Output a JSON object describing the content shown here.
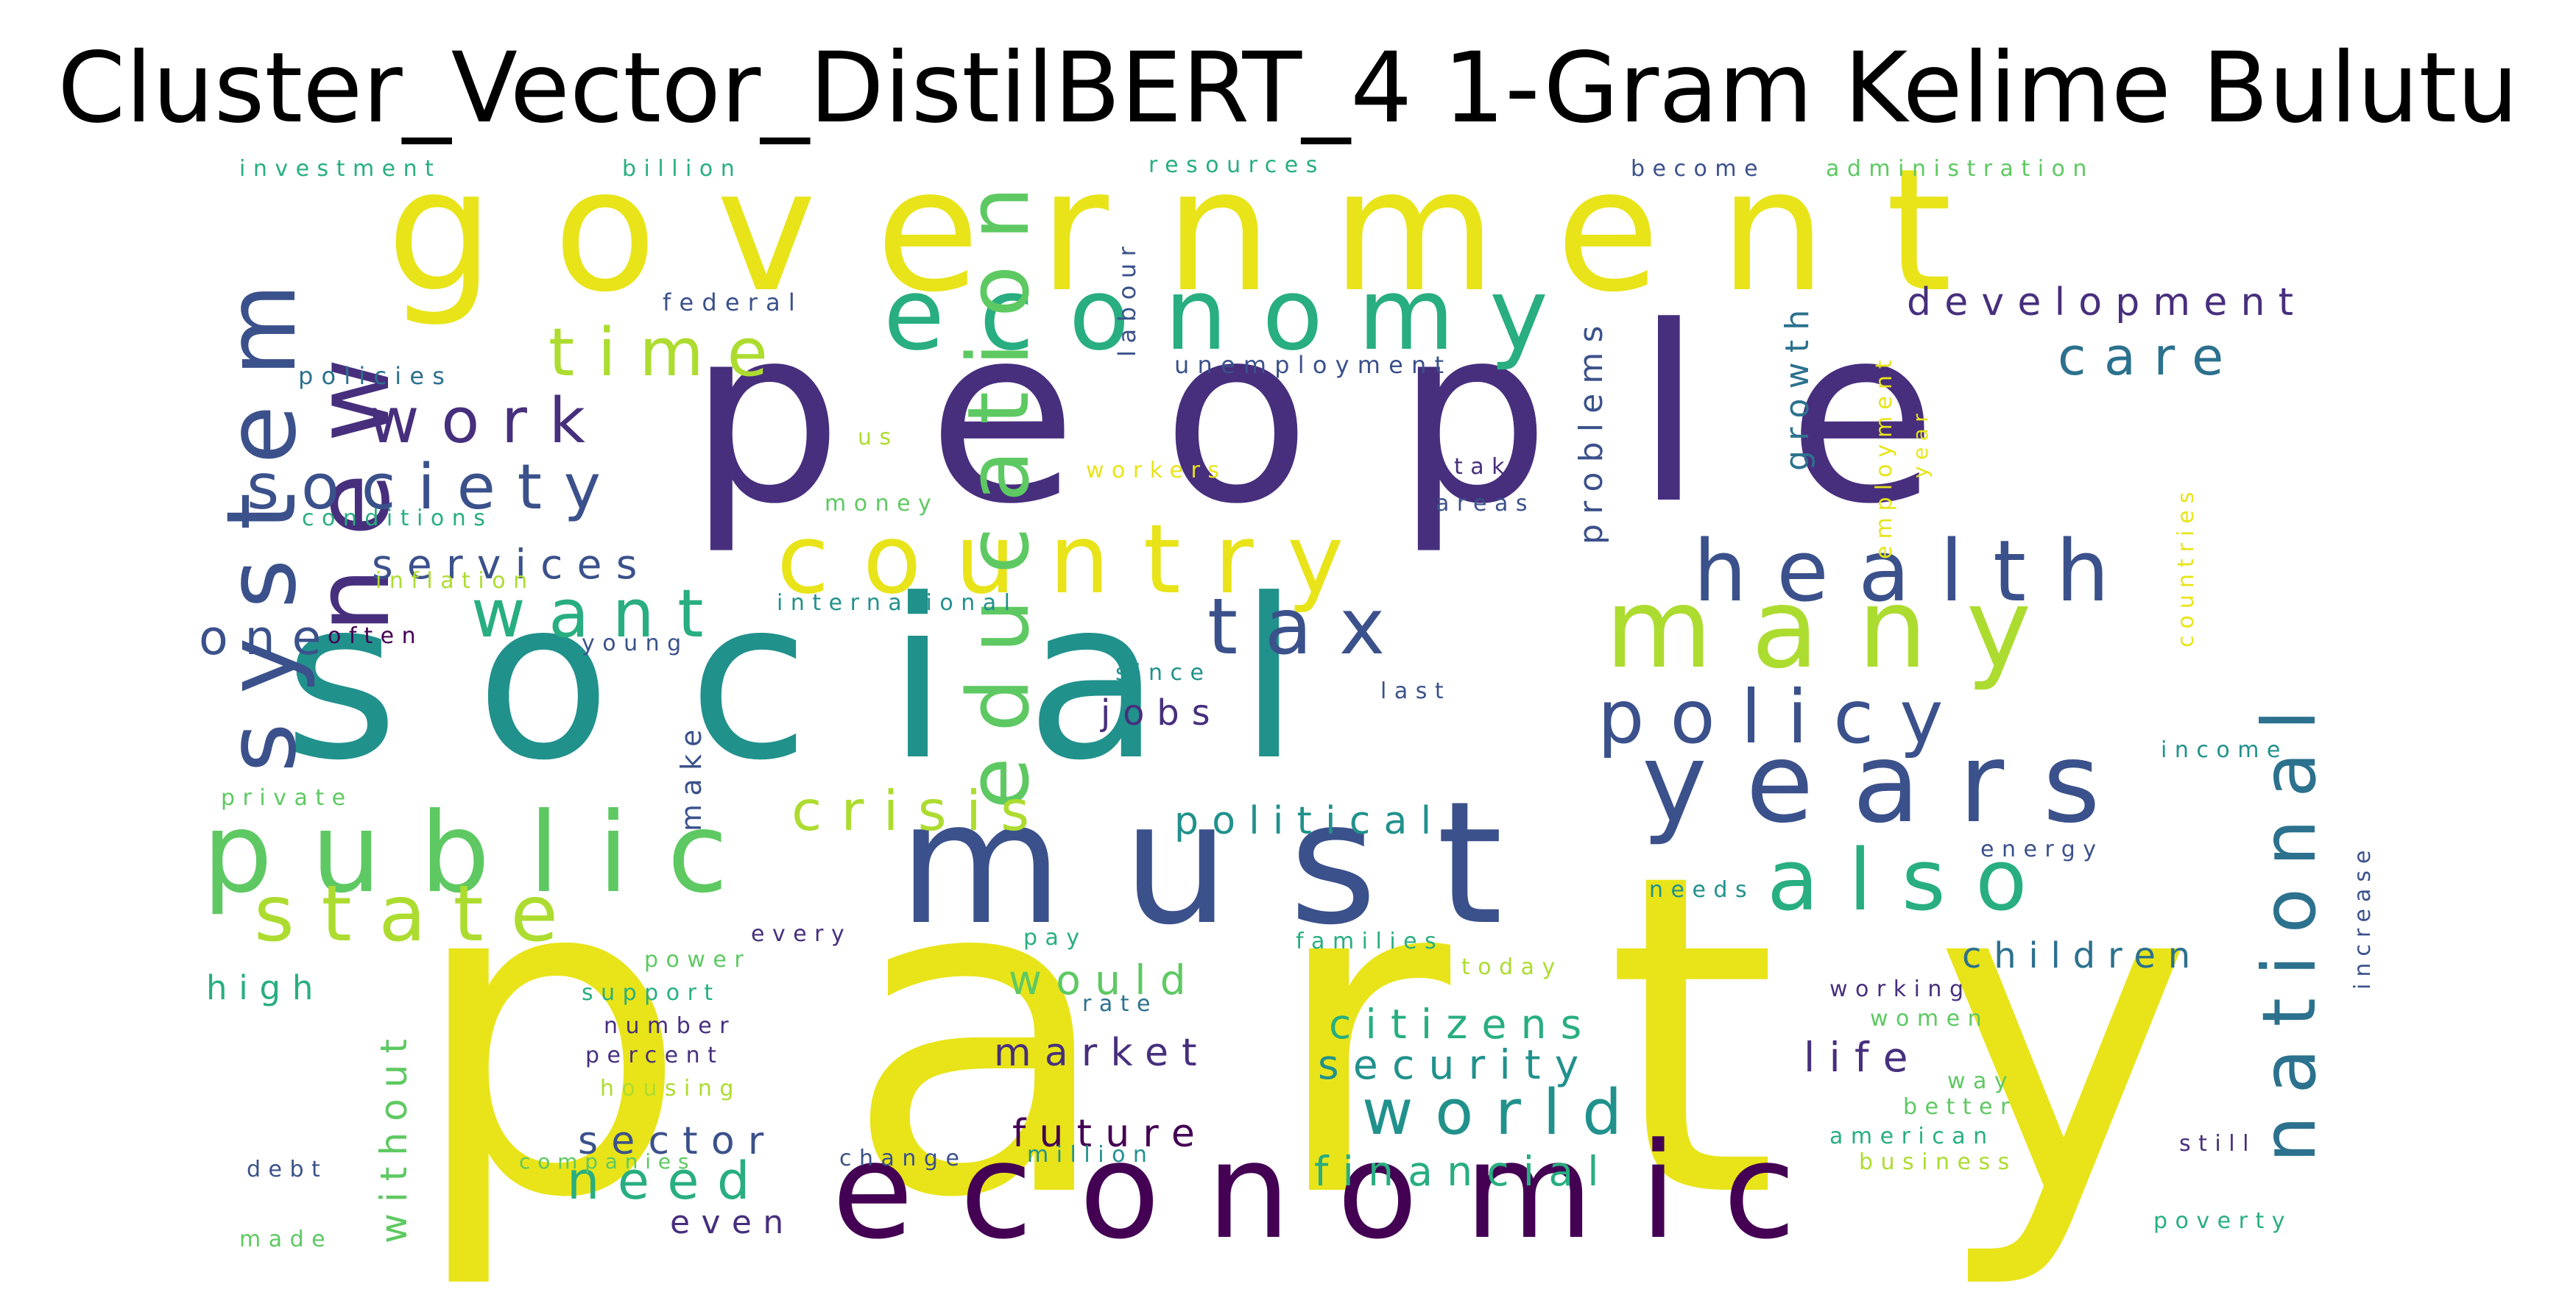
{
  "title": "Cluster_Vector_DistilBERT_4 1-Gram Kelime Bulutu",
  "palette": {
    "dark_purple": "#440154",
    "indigo": "#472f7d",
    "slate_blue": "#3b518b",
    "steel_blue": "#2c718e",
    "teal_blue": "#21918c",
    "teal": "#28ae80",
    "green": "#5ec962",
    "lime": "#addc30",
    "yellow": "#e8e419"
  },
  "words": [
    {
      "text": "party",
      "color": "yellow"
    },
    {
      "text": "people",
      "color": "indigo"
    },
    {
      "text": "social",
      "color": "teal_blue"
    },
    {
      "text": "government",
      "color": "yellow"
    },
    {
      "text": "economic",
      "color": "dark_purple"
    },
    {
      "text": "must",
      "color": "slate_blue"
    },
    {
      "text": "economy",
      "color": "teal"
    },
    {
      "text": "public",
      "color": "green"
    },
    {
      "text": "system",
      "color": "slate_blue"
    },
    {
      "text": "country",
      "color": "yellow"
    },
    {
      "text": "many",
      "color": "lime"
    },
    {
      "text": "years",
      "color": "slate_blue"
    },
    {
      "text": "new",
      "color": "indigo"
    },
    {
      "text": "health",
      "color": "slate_blue"
    },
    {
      "text": "education",
      "color": "green"
    },
    {
      "text": "state",
      "color": "lime"
    },
    {
      "text": "policy",
      "color": "slate_blue"
    },
    {
      "text": "also",
      "color": "teal"
    },
    {
      "text": "tax",
      "color": "slate_blue"
    },
    {
      "text": "national",
      "color": "steel_blue"
    },
    {
      "text": "society",
      "color": "slate_blue"
    },
    {
      "text": "time",
      "color": "lime"
    },
    {
      "text": "want",
      "color": "teal"
    },
    {
      "text": "work",
      "color": "indigo"
    },
    {
      "text": "world",
      "color": "teal_blue"
    },
    {
      "text": "crisis",
      "color": "lime"
    },
    {
      "text": "care",
      "color": "steel_blue"
    },
    {
      "text": "need",
      "color": "teal"
    },
    {
      "text": "one",
      "color": "slate_blue"
    },
    {
      "text": "services",
      "color": "slate_blue"
    },
    {
      "text": "political",
      "color": "teal_blue"
    },
    {
      "text": "development",
      "color": "indigo"
    },
    {
      "text": "future",
      "color": "dark_purple"
    },
    {
      "text": "market",
      "color": "indigo"
    },
    {
      "text": "children",
      "color": "steel_blue"
    },
    {
      "text": "security",
      "color": "teal_blue"
    },
    {
      "text": "citizens",
      "color": "teal"
    },
    {
      "text": "financial",
      "color": "teal"
    },
    {
      "text": "life",
      "color": "indigo"
    },
    {
      "text": "would",
      "color": "green"
    },
    {
      "text": "sector",
      "color": "slate_blue"
    },
    {
      "text": "jobs",
      "color": "indigo"
    },
    {
      "text": "without",
      "color": "green"
    },
    {
      "text": "problems",
      "color": "slate_blue"
    },
    {
      "text": "growth",
      "color": "steel_blue"
    },
    {
      "text": "high",
      "color": "teal"
    },
    {
      "text": "even",
      "color": "indigo"
    },
    {
      "text": "make",
      "color": "slate_blue"
    },
    {
      "text": "unemployment",
      "color": "slate_blue"
    },
    {
      "text": "labour",
      "color": "slate_blue"
    },
    {
      "text": "federal",
      "color": "slate_blue"
    },
    {
      "text": "policies",
      "color": "steel_blue"
    },
    {
      "text": "investment",
      "color": "teal"
    },
    {
      "text": "billion",
      "color": "teal"
    },
    {
      "text": "resources",
      "color": "teal"
    },
    {
      "text": "become",
      "color": "slate_blue"
    },
    {
      "text": "administration",
      "color": "green"
    },
    {
      "text": "employment",
      "color": "yellow"
    },
    {
      "text": "year",
      "color": "yellow"
    },
    {
      "text": "countries",
      "color": "yellow"
    },
    {
      "text": "us",
      "color": "lime"
    },
    {
      "text": "money",
      "color": "green"
    },
    {
      "text": "workers",
      "color": "yellow"
    },
    {
      "text": "take",
      "color": "indigo"
    },
    {
      "text": "areas",
      "color": "slate_blue"
    },
    {
      "text": "conditions",
      "color": "teal"
    },
    {
      "text": "inflation",
      "color": "lime"
    },
    {
      "text": "international",
      "color": "teal_blue"
    },
    {
      "text": "often",
      "color": "dark_purple"
    },
    {
      "text": "young",
      "color": "slate_blue"
    },
    {
      "text": "since",
      "color": "teal_blue"
    },
    {
      "text": "last",
      "color": "slate_blue"
    },
    {
      "text": "income",
      "color": "teal_blue"
    },
    {
      "text": "increase",
      "color": "slate_blue"
    },
    {
      "text": "private",
      "color": "green"
    },
    {
      "text": "energy",
      "color": "slate_blue"
    },
    {
      "text": "needs",
      "color": "teal_blue"
    },
    {
      "text": "every",
      "color": "indigo"
    },
    {
      "text": "pay",
      "color": "teal"
    },
    {
      "text": "families",
      "color": "teal"
    },
    {
      "text": "today",
      "color": "lime"
    },
    {
      "text": "power",
      "color": "green"
    },
    {
      "text": "rate",
      "color": "steel_blue"
    },
    {
      "text": "working",
      "color": "indigo"
    },
    {
      "text": "support",
      "color": "teal"
    },
    {
      "text": "women",
      "color": "green"
    },
    {
      "text": "number",
      "color": "indigo"
    },
    {
      "text": "percent",
      "color": "indigo"
    },
    {
      "text": "way",
      "color": "green"
    },
    {
      "text": "better",
      "color": "green"
    },
    {
      "text": "housing",
      "color": "lime"
    },
    {
      "text": "american",
      "color": "teal"
    },
    {
      "text": "still",
      "color": "indigo"
    },
    {
      "text": "million",
      "color": "teal_blue"
    },
    {
      "text": "business",
      "color": "lime"
    },
    {
      "text": "companies",
      "color": "green"
    },
    {
      "text": "change",
      "color": "slate_blue"
    },
    {
      "text": "debt",
      "color": "slate_blue"
    },
    {
      "text": "made",
      "color": "green"
    },
    {
      "text": "poverty",
      "color": "teal"
    }
  ]
}
